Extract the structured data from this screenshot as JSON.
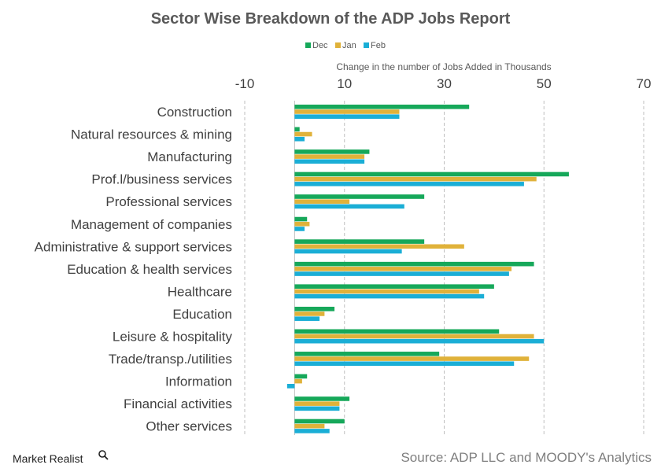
{
  "brand": {
    "name": "Market Realist"
  },
  "source": "Source: ADP LLC and MOODY's Analytics",
  "colors": {
    "Dec": "#16a85a",
    "Jan": "#e0b23a",
    "Feb": "#1aaed6",
    "grid": "#bfbfbf"
  },
  "chart_data": {
    "type": "bar",
    "orientation": "horizontal",
    "title": "Sector Wise Breakdown of the ADP Jobs Report",
    "xlabel": "Change  in the number of Jobs Added  in Thousands",
    "ylabel": "",
    "xlim": [
      -10,
      70
    ],
    "xticks": [
      -10,
      10,
      30,
      50,
      70
    ],
    "grid": true,
    "legend_position": "top",
    "categories": [
      "Construction",
      "Natural resources & mining",
      "Manufacturing",
      "Prof.l/business services",
      "Professional services",
      "Management of companies",
      "Administrative & support services",
      "Education & health services",
      "Healthcare",
      "Education",
      "Leisure & hospitality",
      "Trade/transp./utilities",
      "Information",
      "Financial activities",
      "Other services"
    ],
    "series": [
      {
        "name": "Dec",
        "values": [
          35,
          1,
          15,
          55,
          26,
          2.5,
          26,
          48,
          40,
          8,
          41,
          29,
          2.5,
          11,
          10
        ]
      },
      {
        "name": "Jan",
        "values": [
          21,
          3.5,
          14,
          48.5,
          11,
          3,
          34,
          43.5,
          37,
          6,
          48,
          47,
          1.5,
          9,
          6
        ]
      },
      {
        "name": "Feb",
        "values": [
          21,
          2,
          14,
          46,
          22,
          2,
          21.5,
          43,
          38,
          5,
          50,
          44,
          -1.5,
          9,
          7
        ]
      }
    ]
  }
}
